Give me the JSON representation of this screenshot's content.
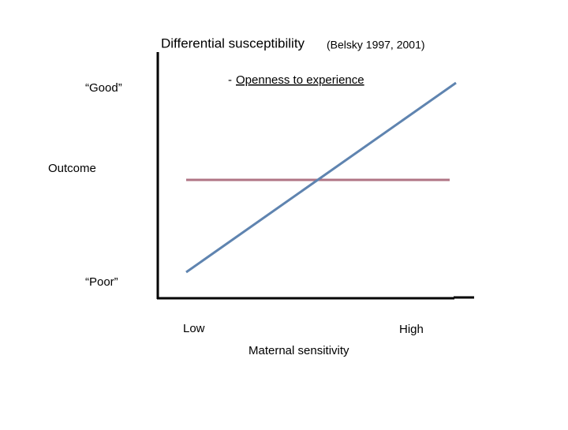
{
  "title": {
    "main": "Differential susceptibility",
    "citation": "(Belsky 1997, 2001)"
  },
  "legend": {
    "dash": "-",
    "label": "Openness to experience"
  },
  "y_axis": {
    "label": "Outcome",
    "top": "“Good”",
    "bottom": "“Poor”"
  },
  "x_axis": {
    "label": "Maternal sensitivity",
    "left": "Low",
    "right": "High"
  }
}
